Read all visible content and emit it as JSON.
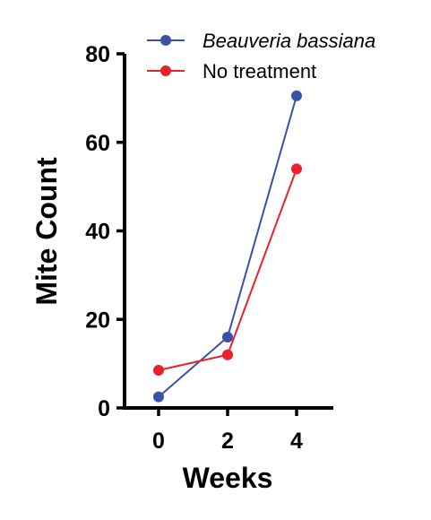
{
  "chart_data": {
    "type": "line",
    "x": [
      0,
      2,
      4
    ],
    "xlabel": "Weeks",
    "ylabel": "Mite Count",
    "xticks": [
      "0",
      "2",
      "4"
    ],
    "yticks": [
      "0",
      "20",
      "40",
      "60",
      "80"
    ],
    "xlim": [
      -1,
      5
    ],
    "ylim": [
      0,
      80
    ],
    "grid": false,
    "legend_position": "top",
    "series": [
      {
        "name": "Beauveria bassiana",
        "values": [
          2.5,
          16,
          70.5
        ],
        "color": "#3a52a5"
      },
      {
        "name": "No treatment",
        "values": [
          8.5,
          12,
          54
        ],
        "color": "#e8212a"
      }
    ]
  }
}
